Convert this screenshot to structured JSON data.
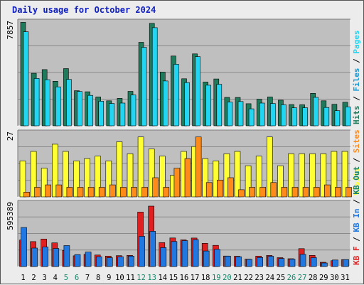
{
  "title": "Daily usage for October 2024",
  "colors": {
    "hits": "#1f7a5c",
    "files": "#22d6f2",
    "pages": "#1a9ad6",
    "visits": "#ffff33",
    "sites": "#ff8c1a",
    "kbin": "#2178e0",
    "kbout": "#e02020",
    "panel_bg": "#bfbfbf",
    "weekend": "#15866a",
    "weekday": "#0000c0",
    "title": "#1020c0"
  },
  "chart_data": [
    {
      "type": "bar",
      "panel": "hits-files-pages",
      "ymax_label": "7857",
      "ylim": [
        0,
        7857
      ],
      "x": [
        1,
        2,
        3,
        4,
        5,
        6,
        7,
        8,
        9,
        10,
        11,
        12,
        13,
        14,
        15,
        16,
        17,
        18,
        19,
        20,
        21,
        22,
        23,
        24,
        25,
        26,
        27,
        28,
        29,
        30,
        31
      ],
      "legend": [
        {
          "text": "Hits",
          "color": "#1f7a5c"
        },
        {
          "text": "Files",
          "color": "#1a9ad6"
        },
        {
          "text": "Pages",
          "color": "#22d6f2"
        }
      ],
      "series": [
        {
          "name": "Hits",
          "values": [
            7780,
            3950,
            4230,
            3350,
            4300,
            2640,
            2560,
            2170,
            1880,
            2070,
            2590,
            6280,
            7710,
            4040,
            5250,
            3540,
            5410,
            3290,
            3520,
            2140,
            2130,
            1660,
            2000,
            2170,
            1930,
            1600,
            1580,
            2440,
            1880,
            1620,
            1770
          ]
        },
        {
          "name": "Files",
          "values": [
            7070,
            3560,
            3470,
            2930,
            3490,
            2580,
            2290,
            1850,
            1680,
            1710,
            2320,
            5900,
            7380,
            3370,
            4630,
            3250,
            5200,
            3050,
            3120,
            1780,
            1830,
            1280,
            1710,
            1680,
            1580,
            1350,
            1360,
            2140,
            1380,
            1140,
            1420
          ]
        }
      ]
    },
    {
      "type": "bar",
      "panel": "visits-sites",
      "ymax_label": "27",
      "ylim": [
        0,
        27
      ],
      "x": [
        1,
        2,
        3,
        4,
        5,
        6,
        7,
        8,
        9,
        10,
        11,
        12,
        13,
        14,
        15,
        16,
        17,
        18,
        19,
        20,
        21,
        22,
        23,
        24,
        25,
        26,
        27,
        28,
        29,
        30,
        31
      ],
      "legend": [
        {
          "text": "Visits",
          "color": "#ffff33"
        },
        {
          "text": "Sites",
          "color": "#ff8c1a"
        }
      ],
      "series": [
        {
          "name": "Visits",
          "values": [
            15,
            19,
            12,
            22,
            19,
            15,
            16,
            17,
            15,
            23,
            18,
            25,
            20,
            17,
            9,
            19,
            21,
            16,
            15,
            18,
            19,
            13,
            17,
            25,
            13,
            18,
            18,
            18,
            18,
            19,
            19
          ]
        },
        {
          "name": "Sites",
          "values": [
            2,
            4,
            5,
            5,
            4,
            4,
            4,
            4,
            5,
            4,
            4,
            4,
            8,
            4,
            12,
            16,
            25,
            6,
            7,
            8,
            3,
            4,
            4,
            6,
            4,
            4,
            4,
            4,
            5,
            4,
            4
          ]
        }
      ]
    },
    {
      "type": "bar",
      "panel": "kbin-kbout",
      "ymax_label": "595389",
      "ylim": [
        0,
        595389
      ],
      "x": [
        1,
        2,
        3,
        4,
        5,
        6,
        7,
        8,
        9,
        10,
        11,
        12,
        13,
        14,
        15,
        16,
        17,
        18,
        19,
        20,
        21,
        22,
        23,
        24,
        25,
        26,
        27,
        28,
        29,
        30,
        31
      ],
      "legend": [
        {
          "text": "KB F",
          "color": "#e02020"
        },
        {
          "text": "KB In",
          "color": "#2178e0"
        },
        {
          "text": "KB Out",
          "color": "#15866a"
        }
      ],
      "series": [
        {
          "name": "KB F",
          "values": [
            247000,
            232000,
            256000,
            220000,
            150000,
            100000,
            114000,
            107000,
            97000,
            101000,
            104000,
            507000,
            562000,
            222000,
            266000,
            248000,
            265000,
            216000,
            197000,
            98000,
            96000,
            69000,
            97000,
            103000,
            83000,
            73000,
            167000,
            104000,
            40000,
            54000,
            64000
          ]
        },
        {
          "name": "KB In",
          "values": [
            363000,
            172000,
            182000,
            168000,
            195000,
            111000,
            135000,
            91000,
            82000,
            91000,
            97000,
            281000,
            328000,
            176000,
            233000,
            241000,
            250000,
            145000,
            160000,
            97000,
            91000,
            67000,
            84000,
            96000,
            75000,
            68000,
            113000,
            83000,
            33000,
            61000,
            65000
          ]
        }
      ]
    }
  ],
  "days": [
    {
      "label": "1",
      "weekend": false
    },
    {
      "label": "2",
      "weekend": false
    },
    {
      "label": "3",
      "weekend": false
    },
    {
      "label": "4",
      "weekend": false
    },
    {
      "label": "5",
      "weekend": true
    },
    {
      "label": "6",
      "weekend": true
    },
    {
      "label": "7",
      "weekend": false
    },
    {
      "label": "8",
      "weekend": false
    },
    {
      "label": "9",
      "weekend": false
    },
    {
      "label": "10",
      "weekend": false
    },
    {
      "label": "11",
      "weekend": false
    },
    {
      "label": "12",
      "weekend": true
    },
    {
      "label": "13",
      "weekend": true
    },
    {
      "label": "14",
      "weekend": false
    },
    {
      "label": "15",
      "weekend": false
    },
    {
      "label": "16",
      "weekend": false
    },
    {
      "label": "17",
      "weekend": false
    },
    {
      "label": "18",
      "weekend": false
    },
    {
      "label": "19",
      "weekend": true
    },
    {
      "label": "20",
      "weekend": true
    },
    {
      "label": "21",
      "weekend": false
    },
    {
      "label": "22",
      "weekend": false
    },
    {
      "label": "23",
      "weekend": false
    },
    {
      "label": "24",
      "weekend": false
    },
    {
      "label": "25",
      "weekend": false
    },
    {
      "label": "26",
      "weekend": true
    },
    {
      "label": "27",
      "weekend": true
    },
    {
      "label": "28",
      "weekend": false
    },
    {
      "label": "29",
      "weekend": false
    },
    {
      "label": "30",
      "weekend": false
    },
    {
      "label": "31",
      "weekend": false
    }
  ]
}
